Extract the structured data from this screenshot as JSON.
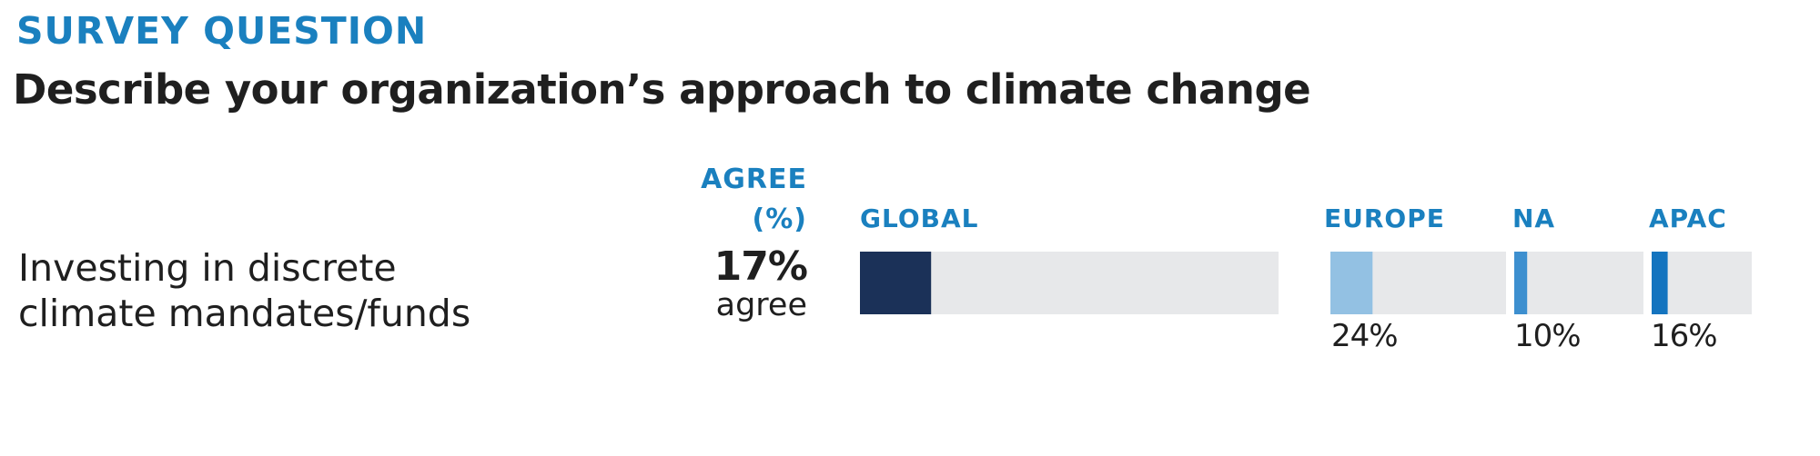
{
  "header": {
    "eyebrow": "SURVEY QUESTION",
    "title": "Describe your organization’s approach to climate change"
  },
  "colors": {
    "accent": "#1a80bf",
    "global_bar": "#1b3158",
    "europe_bar": "#93c1e3",
    "na_bar": "#3d8fcf",
    "apac_bar": "#1474bf",
    "track": "#e7e8ea"
  },
  "chart_data": {
    "type": "bar",
    "columns": {
      "agree_header_line1": "AGREE",
      "agree_header_line2": "(%)",
      "global": "GLOBAL",
      "europe": "EUROPE",
      "na": "NA",
      "apac": "APAC"
    },
    "rows": [
      {
        "label_line1": "Investing in discrete",
        "label_line2": "climate mandates/funds",
        "agree_value": "17%",
        "agree_word": "agree",
        "global": 17,
        "europe": 24,
        "na": 10,
        "apac": 16,
        "europe_label": "24%",
        "na_label": "10%",
        "apac_label": "16%"
      }
    ],
    "xlim": [
      0,
      100
    ]
  }
}
